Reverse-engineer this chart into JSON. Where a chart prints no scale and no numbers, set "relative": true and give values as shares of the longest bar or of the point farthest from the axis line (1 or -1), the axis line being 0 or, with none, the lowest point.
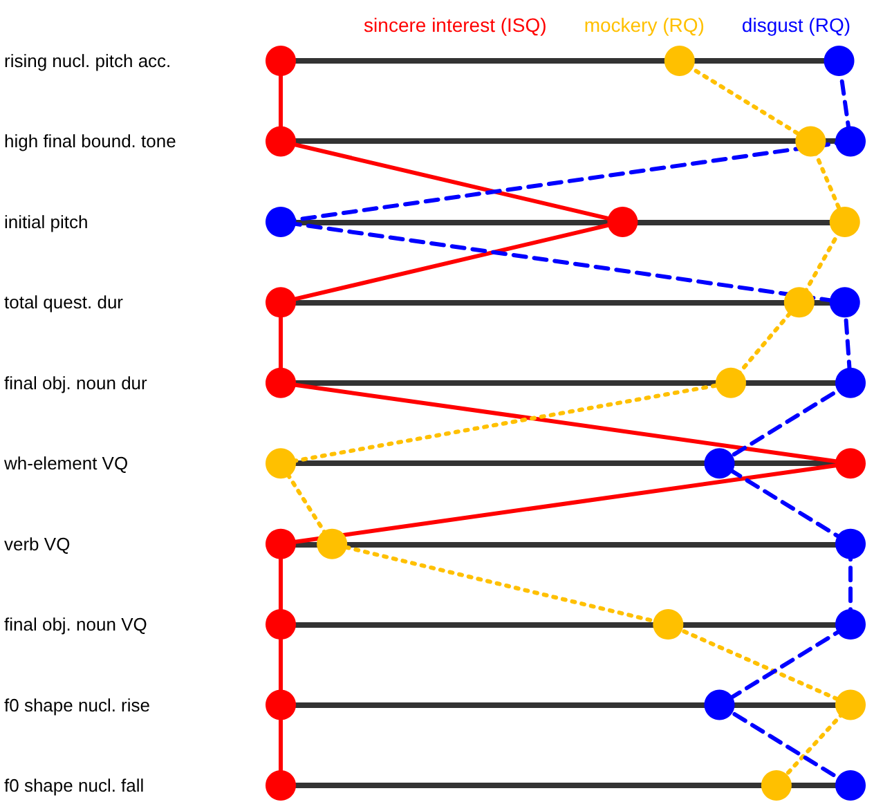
{
  "chart_data": {
    "type": "line",
    "orientation": "horizontal",
    "relative": true,
    "grid": "y",
    "legend": "top right",
    "marker": "circle",
    "categories": [
      "rising nucl. pitch acc.",
      "high final bound. tone",
      "initial pitch",
      "total quest. dur",
      "final obj. noun dur",
      "wh-element VQ",
      "verb VQ",
      "final obj. noun VQ",
      "f0 shape nucl. rise",
      "f0 shape nucl. fall"
    ],
    "series": [
      {
        "name": "sincere interest (ISQ)",
        "color": "#ff0000",
        "line_style": "solid",
        "values": [
          0,
          0,
          0.6,
          0,
          0,
          1,
          0,
          0,
          0,
          0
        ]
      },
      {
        "name": "mockery (RQ)",
        "color": "#ffc000",
        "line_style": "dotted",
        "values": [
          0.7,
          0.93,
          0.99,
          0.91,
          0.79,
          0,
          0.09,
          0.68,
          1,
          0.87
        ]
      },
      {
        "name": "disgust (RQ)",
        "color": "#0000ff",
        "line_style": "dashed",
        "values": [
          0.98,
          1,
          0,
          0.99,
          1,
          0.77,
          1,
          1,
          0.77,
          1
        ]
      }
    ]
  }
}
